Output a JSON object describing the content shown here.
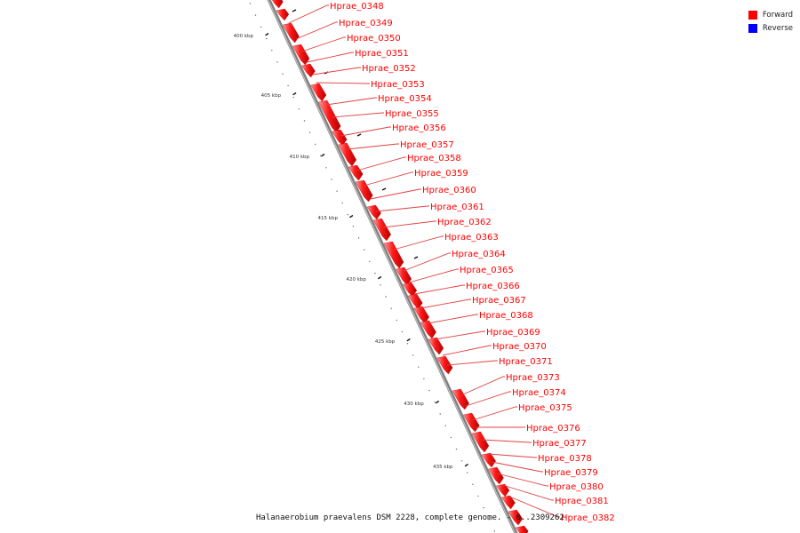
{
  "legend": [
    {
      "label": "Forward",
      "color": "#ff0000"
    },
    {
      "label": "Reverse",
      "color": "#0000ff"
    }
  ],
  "caption": "Halanaerobium praevalens DSM 2228, complete genome. - 0..2309262",
  "colors": {
    "forward": "#ff0000",
    "backbone": "#808080",
    "leader": "#e04040"
  },
  "ticks": [
    "400 kbp",
    "405 kbp",
    "410 kbp",
    "415 kbp",
    "420 kbp",
    "425 kbp",
    "430 kbp",
    "435 kbp"
  ],
  "genes": [
    {
      "id": "Hprae_0348",
      "strand": "forward"
    },
    {
      "id": "Hprae_0349",
      "strand": "forward"
    },
    {
      "id": "Hprae_0350",
      "strand": "forward"
    },
    {
      "id": "Hprae_0351",
      "strand": "forward"
    },
    {
      "id": "Hprae_0352",
      "strand": "forward"
    },
    {
      "id": "Hprae_0353",
      "strand": "forward"
    },
    {
      "id": "Hprae_0354",
      "strand": "forward"
    },
    {
      "id": "Hprae_0355",
      "strand": "forward"
    },
    {
      "id": "Hprae_0356",
      "strand": "forward"
    },
    {
      "id": "Hprae_0357",
      "strand": "forward"
    },
    {
      "id": "Hprae_0358",
      "strand": "forward"
    },
    {
      "id": "Hprae_0359",
      "strand": "forward"
    },
    {
      "id": "Hprae_0360",
      "strand": "forward"
    },
    {
      "id": "Hprae_0361",
      "strand": "forward"
    },
    {
      "id": "Hprae_0362",
      "strand": "forward"
    },
    {
      "id": "Hprae_0363",
      "strand": "forward"
    },
    {
      "id": "Hprae_0364",
      "strand": "forward"
    },
    {
      "id": "Hprae_0365",
      "strand": "forward"
    },
    {
      "id": "Hprae_0366",
      "strand": "forward"
    },
    {
      "id": "Hprae_0367",
      "strand": "forward"
    },
    {
      "id": "Hprae_0368",
      "strand": "forward"
    },
    {
      "id": "Hprae_0369",
      "strand": "forward"
    },
    {
      "id": "Hprae_0370",
      "strand": "forward"
    },
    {
      "id": "Hprae_0371",
      "strand": "forward"
    },
    {
      "id": "Hprae_0373",
      "strand": "forward"
    },
    {
      "id": "Hprae_0374",
      "strand": "forward"
    },
    {
      "id": "Hprae_0375",
      "strand": "forward"
    },
    {
      "id": "Hprae_0376",
      "strand": "forward"
    },
    {
      "id": "Hprae_0377",
      "strand": "forward"
    },
    {
      "id": "Hprae_0378",
      "strand": "forward"
    },
    {
      "id": "Hprae_0379",
      "strand": "forward"
    },
    {
      "id": "Hprae_0380",
      "strand": "forward"
    },
    {
      "id": "Hprae_0381",
      "strand": "forward"
    },
    {
      "id": "Hprae_0382",
      "strand": "forward"
    }
  ]
}
